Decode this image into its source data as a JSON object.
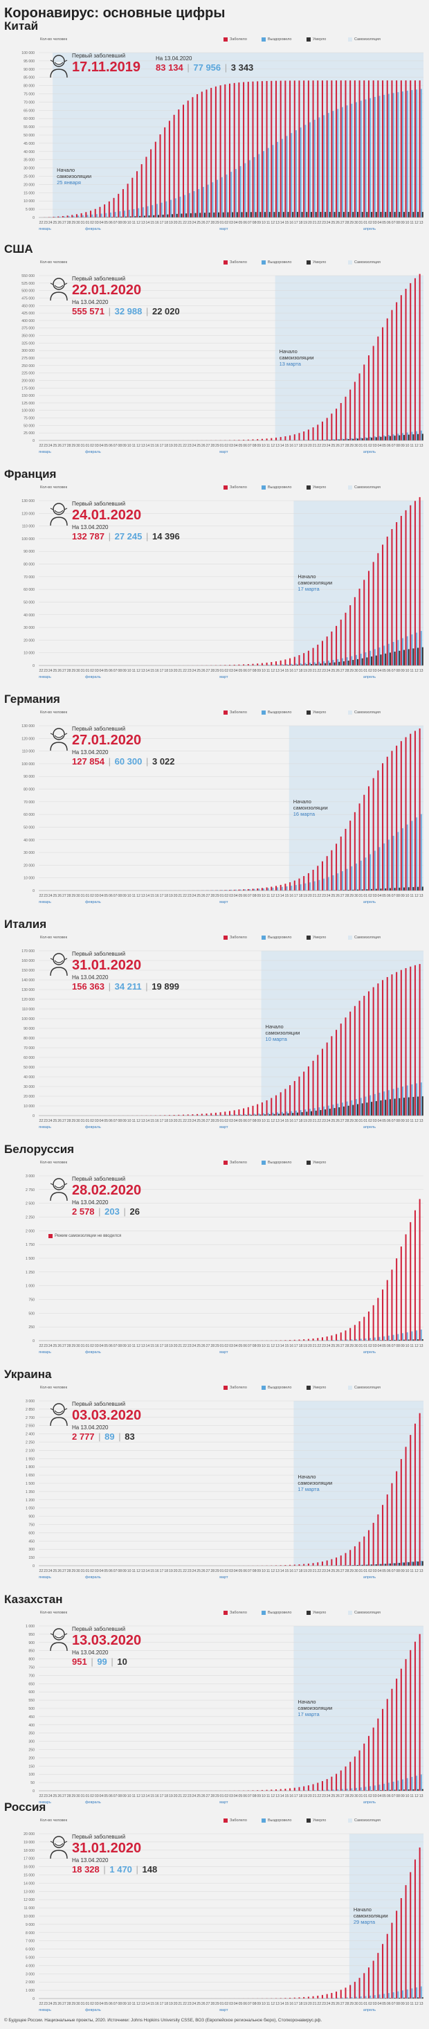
{
  "page_title": "Коронавирус: основные цифры",
  "legend": {
    "count_label": "Кол-во человек",
    "infected": "Заболело",
    "recovered": "Выздоровело",
    "deaths": "Умерло",
    "self_isolation": "Самоизоляция"
  },
  "info_labels": {
    "first_case": "Первый заболевший",
    "as_of": "На 13.04.2020",
    "lockdown_start": "Начало самоизоляции"
  },
  "months": [
    "январь",
    "февраль",
    "март",
    "апрель"
  ],
  "footer": "© Будущее России. Национальные проекты, 2020. Источники: Johns Hopkins University CSSE, ВОЗ (Европейское региональное бюро), Стопкоронавирус.рф.",
  "colors": {
    "infected": "#d1203a",
    "recovered": "#5aa6dc",
    "deaths": "#333333",
    "self_isolation": "#dce8f1",
    "background": "#f2f2f2"
  },
  "chart_data": [
    {
      "type": "bar",
      "country": "Китай",
      "first_case_date": "17.11.2019",
      "infected_total": "83 134",
      "recovered_total": "77 956",
      "deaths_total": "3 343",
      "lockdown_date": "25 января",
      "ylim": [
        0,
        100000
      ],
      "yticks": [
        "0",
        "5 000",
        "10 000",
        "15 000",
        "20 000",
        "25 000",
        "30 000",
        "35 000",
        "40 000",
        "45 000",
        "50 000",
        "55 000",
        "60 000",
        "65 000",
        "70 000",
        "75 000",
        "80 000",
        "85 000",
        "90 000",
        "95 000",
        "100 000"
      ],
      "start_day": 22,
      "end_day": 13
    },
    {
      "type": "bar",
      "country": "США",
      "first_case_date": "22.01.2020",
      "infected_total": "555 571",
      "recovered_total": "32 988",
      "deaths_total": "22 020",
      "lockdown_date": "13 марта",
      "ylim": [
        0,
        550000
      ],
      "yticks": [
        "0",
        "25 000",
        "50 000",
        "75 000",
        "100 000",
        "125 000",
        "150 000",
        "175 000",
        "200 000",
        "225 000",
        "250 000",
        "275 000",
        "300 000",
        "325 000",
        "350 000",
        "375 000",
        "400 000",
        "425 000",
        "450 000",
        "475 000",
        "500 000",
        "525 000",
        "550 000"
      ],
      "start_day": 22,
      "end_day": 13
    },
    {
      "type": "bar",
      "country": "Франция",
      "first_case_date": "24.01.2020",
      "infected_total": "132 787",
      "recovered_total": "27 245",
      "deaths_total": "14 396",
      "lockdown_date": "17 марта",
      "ylim": [
        0,
        130000
      ],
      "yticks": [
        "0",
        "10 000",
        "20 000",
        "30 000",
        "40 000",
        "50 000",
        "60 000",
        "70 000",
        "80 000",
        "90 000",
        "100 000",
        "110 000",
        "120 000",
        "130 000"
      ],
      "start_day": 22,
      "end_day": 13
    },
    {
      "type": "bar",
      "country": "Германия",
      "first_case_date": "27.01.2020",
      "infected_total": "127 854",
      "recovered_total": "60 300",
      "deaths_total": "3 022",
      "lockdown_date": "16 марта",
      "ylim": [
        0,
        130000
      ],
      "yticks": [
        "0",
        "10 000",
        "20 000",
        "30 000",
        "40 000",
        "50 000",
        "60 000",
        "70 000",
        "80 000",
        "90 000",
        "100 000",
        "110 000",
        "120 000",
        "130 000"
      ],
      "start_day": 22,
      "end_day": 13
    },
    {
      "type": "bar",
      "country": "Италия",
      "first_case_date": "31.01.2020",
      "infected_total": "156 363",
      "recovered_total": "34 211",
      "deaths_total": "19 899",
      "lockdown_date": "10 марта",
      "ylim": [
        0,
        170000
      ],
      "yticks": [
        "0",
        "10 000",
        "20 000",
        "30 000",
        "40 000",
        "50 000",
        "60 000",
        "70 000",
        "80 000",
        "90 000",
        "100 000",
        "110 000",
        "120 000",
        "130 000",
        "140 000",
        "150 000",
        "160 000",
        "170 000"
      ],
      "start_day": 22,
      "end_day": 13
    },
    {
      "type": "bar",
      "country": "Белоруссия",
      "first_case_date": "28.02.2020",
      "infected_total": "2 578",
      "recovered_total": "203",
      "deaths_total": "26",
      "lockdown_date": "",
      "no_lockdown_note": "Режим самоизоляции не вводился",
      "ylim": [
        0,
        3000
      ],
      "yticks": [
        "0",
        "250",
        "500",
        "750",
        "1 000",
        "1 250",
        "1 500",
        "1 750",
        "2 000",
        "2 250",
        "2 500",
        "2 750",
        "3 000"
      ],
      "start_day": 22,
      "end_day": 13
    },
    {
      "type": "bar",
      "country": "Украина",
      "first_case_date": "03.03.2020",
      "infected_total": "2 777",
      "recovered_total": "89",
      "deaths_total": "83",
      "lockdown_date": "17 марта",
      "ylim": [
        0,
        3000
      ],
      "yticks": [
        "0",
        "150",
        "300",
        "450",
        "600",
        "750",
        "900",
        "1 050",
        "1 200",
        "1 350",
        "1 500",
        "1 650",
        "1 800",
        "1 950",
        "2 100",
        "2 250",
        "2 400",
        "2 550",
        "2 700",
        "2 850",
        "3 000"
      ],
      "start_day": 22,
      "end_day": 13
    },
    {
      "type": "bar",
      "country": "Казахстан",
      "first_case_date": "13.03.2020",
      "infected_total": "951",
      "recovered_total": "99",
      "deaths_total": "10",
      "lockdown_date": "17 марта",
      "ylim": [
        0,
        1000
      ],
      "yticks": [
        "0",
        "50",
        "100",
        "150",
        "200",
        "250",
        "300",
        "350",
        "400",
        "450",
        "500",
        "550",
        "600",
        "650",
        "700",
        "750",
        "800",
        "850",
        "900",
        "950",
        "1 000"
      ],
      "start_day": 22,
      "end_day": 13
    },
    {
      "type": "bar",
      "country": "Россия",
      "first_case_date": "31.01.2020",
      "infected_total": "18 328",
      "recovered_total": "1 470",
      "deaths_total": "148",
      "lockdown_date": "29 марта",
      "ylim": [
        0,
        20000
      ],
      "yticks": [
        "0",
        "1 000",
        "2 000",
        "3 000",
        "4 000",
        "5 000",
        "6 000",
        "7 000",
        "8 000",
        "9 000",
        "10 000",
        "11 000",
        "12 000",
        "13 000",
        "14 000",
        "15 000",
        "16 000",
        "17 000",
        "18 000",
        "19 000",
        "20 000"
      ],
      "start_day": 22,
      "end_day": 13
    }
  ]
}
